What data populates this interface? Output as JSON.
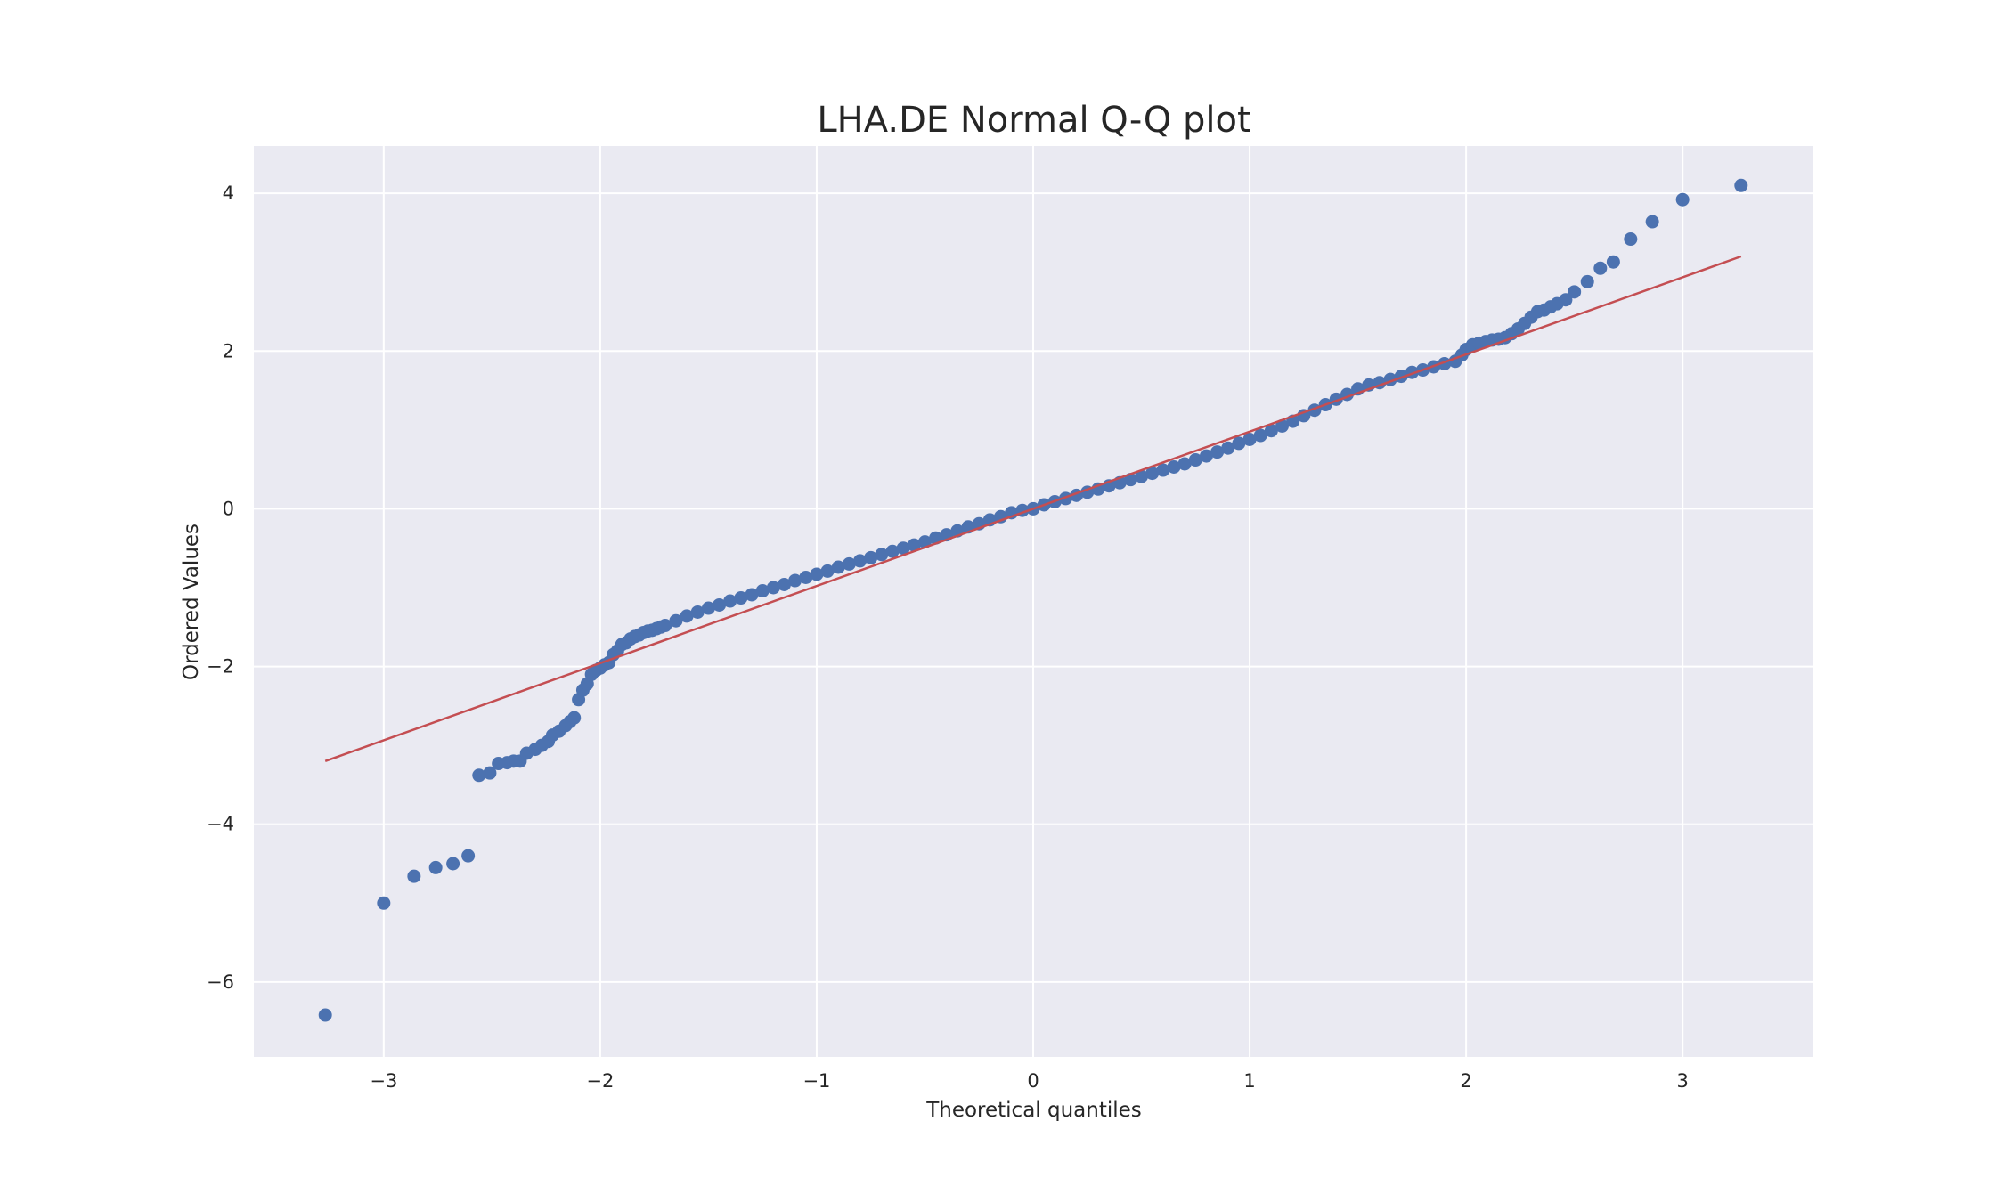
{
  "chart_data": {
    "type": "scatter",
    "title": "LHA.DE Normal Q-Q plot",
    "xlabel": "Theoretical quantiles",
    "ylabel": "Ordered Values",
    "xlim": [
      -3.6,
      3.6
    ],
    "ylim": [
      -6.95,
      4.6
    ],
    "xticks": [
      -3,
      -2,
      -1,
      0,
      1,
      2,
      3
    ],
    "xtick_labels": [
      "−3",
      "−2",
      "−1",
      "0",
      "1",
      "2",
      "3"
    ],
    "yticks": [
      -6,
      -4,
      -2,
      0,
      2,
      4
    ],
    "ytick_labels": [
      "−6",
      "−4",
      "−2",
      "0",
      "2",
      "4"
    ],
    "grid": true,
    "background": "#eaeaf2",
    "colors": {
      "points": "#4c72b0",
      "fit_line": "#c44e52"
    },
    "fit_line": {
      "x": [
        -3.27,
        3.27
      ],
      "y": [
        -3.2,
        3.2
      ]
    },
    "points": {
      "x": [
        -3.27,
        -3.0,
        -2.86,
        -2.76,
        -2.68,
        -2.61,
        -2.56,
        -2.51,
        -2.47,
        -2.43,
        -2.4,
        -2.37,
        -2.34,
        -2.3,
        -2.27,
        -2.24,
        -2.22,
        -2.19,
        -2.16,
        -2.14,
        -2.12,
        -2.1,
        -2.08,
        -2.06,
        -2.04,
        -2.02,
        -2.0,
        -1.98,
        -1.96,
        -1.94,
        -1.92,
        -1.9,
        -1.88,
        -1.86,
        -1.84,
        -1.82,
        -1.8,
        -1.78,
        -1.76,
        -1.74,
        -1.72,
        -1.7,
        -1.65,
        -1.6,
        -1.55,
        -1.5,
        -1.45,
        -1.4,
        -1.35,
        -1.3,
        -1.25,
        -1.2,
        -1.15,
        -1.1,
        -1.05,
        -1.0,
        -0.95,
        -0.9,
        -0.85,
        -0.8,
        -0.75,
        -0.7,
        -0.65,
        -0.6,
        -0.55,
        -0.5,
        -0.45,
        -0.4,
        -0.35,
        -0.3,
        -0.25,
        -0.2,
        -0.15,
        -0.1,
        -0.05,
        0.0,
        0.05,
        0.1,
        0.15,
        0.2,
        0.25,
        0.3,
        0.35,
        0.4,
        0.45,
        0.5,
        0.55,
        0.6,
        0.65,
        0.7,
        0.75,
        0.8,
        0.85,
        0.9,
        0.95,
        1.0,
        1.05,
        1.1,
        1.15,
        1.2,
        1.25,
        1.3,
        1.35,
        1.4,
        1.45,
        1.5,
        1.55,
        1.6,
        1.65,
        1.7,
        1.75,
        1.8,
        1.85,
        1.9,
        1.95,
        1.98,
        2.0,
        2.03,
        2.06,
        2.09,
        2.12,
        2.15,
        2.18,
        2.21,
        2.24,
        2.27,
        2.3,
        2.33,
        2.36,
        2.39,
        2.42,
        2.46,
        2.5,
        2.56,
        2.62,
        2.68,
        2.76,
        2.86,
        3.0,
        3.27
      ],
      "y": [
        -6.42,
        -5.0,
        -4.66,
        -4.55,
        -4.5,
        -4.4,
        -3.38,
        -3.35,
        -3.23,
        -3.22,
        -3.2,
        -3.2,
        -3.1,
        -3.05,
        -3.0,
        -2.95,
        -2.87,
        -2.82,
        -2.75,
        -2.7,
        -2.65,
        -2.42,
        -2.3,
        -2.22,
        -2.1,
        -2.05,
        -2.02,
        -1.98,
        -1.95,
        -1.85,
        -1.8,
        -1.72,
        -1.7,
        -1.65,
        -1.62,
        -1.6,
        -1.57,
        -1.55,
        -1.54,
        -1.52,
        -1.5,
        -1.48,
        -1.42,
        -1.36,
        -1.31,
        -1.26,
        -1.22,
        -1.17,
        -1.13,
        -1.09,
        -1.04,
        -1.0,
        -0.96,
        -0.91,
        -0.87,
        -0.83,
        -0.79,
        -0.74,
        -0.7,
        -0.66,
        -0.62,
        -0.58,
        -0.54,
        -0.5,
        -0.46,
        -0.42,
        -0.37,
        -0.33,
        -0.28,
        -0.23,
        -0.19,
        -0.14,
        -0.1,
        -0.05,
        -0.02,
        0.0,
        0.05,
        0.09,
        0.13,
        0.17,
        0.21,
        0.25,
        0.29,
        0.33,
        0.37,
        0.41,
        0.45,
        0.49,
        0.53,
        0.57,
        0.62,
        0.67,
        0.72,
        0.77,
        0.83,
        0.88,
        0.93,
        0.99,
        1.05,
        1.11,
        1.18,
        1.25,
        1.32,
        1.39,
        1.45,
        1.52,
        1.57,
        1.6,
        1.64,
        1.68,
        1.73,
        1.76,
        1.8,
        1.84,
        1.87,
        1.95,
        2.02,
        2.08,
        2.1,
        2.12,
        2.14,
        2.15,
        2.17,
        2.22,
        2.28,
        2.35,
        2.43,
        2.5,
        2.52,
        2.56,
        2.6,
        2.65,
        2.75,
        2.88,
        3.05,
        3.13,
        3.42,
        3.64,
        3.92,
        4.1
      ]
    }
  }
}
